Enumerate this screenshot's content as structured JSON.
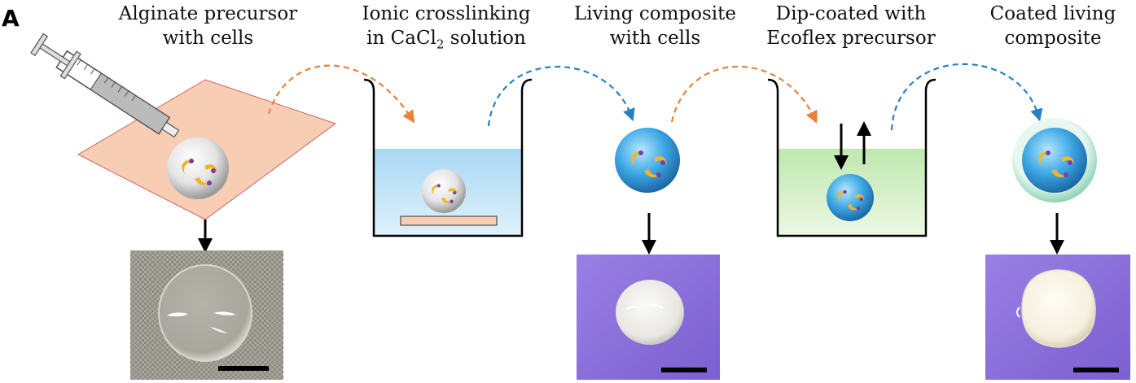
{
  "panel_label": "A",
  "steps": [
    {
      "line1": "Alginate precursor",
      "line2": "with cells"
    },
    {
      "line1": "Ionic crosslinking",
      "line2_pre": "in CaCl",
      "line2_sub": "2",
      "line2_post": " solution"
    },
    {
      "line1": "Living composite",
      "line2": "with cells"
    },
    {
      "line1": "Dip-coated with",
      "line2": "Ecoflex precursor"
    },
    {
      "line1": "Coated living",
      "line2": "composite"
    }
  ],
  "colors": {
    "orange_arrow": "#e8823a",
    "blue_arrow": "#2a7fc4",
    "substrate": "#f7cdb4",
    "cacl2_solution": "#bfe0f5",
    "ecoflex_solution": "#cdeec0",
    "photo_purple": "#8a6fd8",
    "photo_mesh": "#9b9a8f",
    "cell_yellow": "#f2b52b",
    "cell_purple": "#7b3fa0"
  },
  "icons": [
    "syringe-icon",
    "beaker-icon",
    "bead-icon",
    "scale-bar-icon"
  ]
}
